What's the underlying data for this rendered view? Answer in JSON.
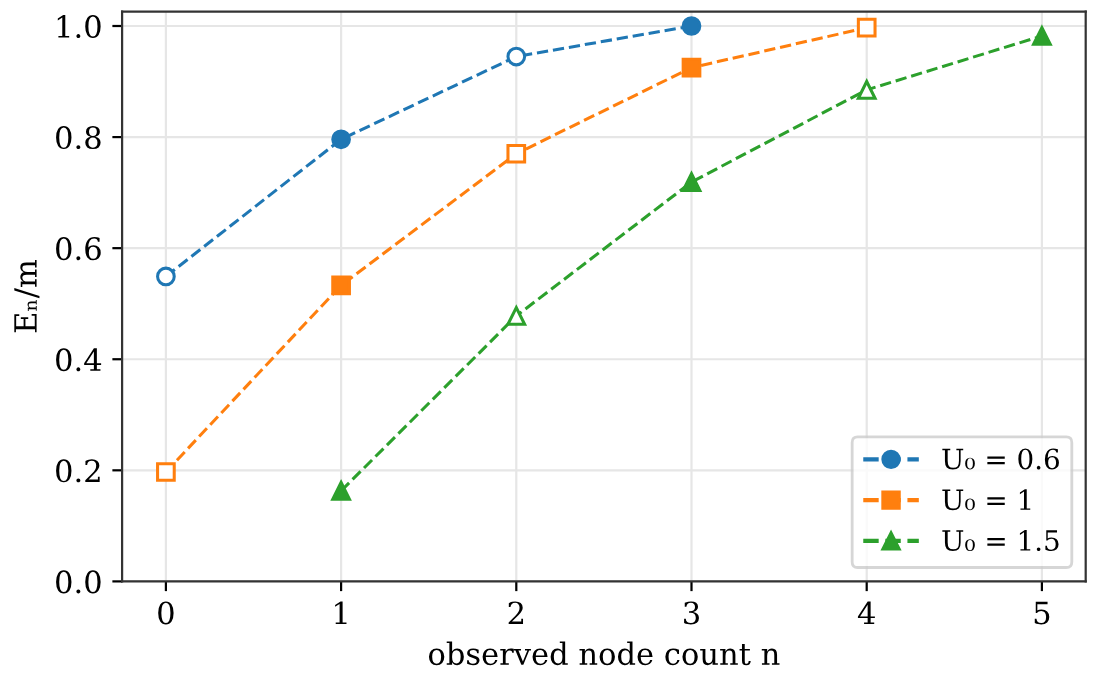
{
  "chart_data": {
    "type": "line",
    "xlabel": "observed node count n",
    "ylabel": "Eₙ/m",
    "x": [
      0,
      1,
      2,
      3,
      4,
      5
    ],
    "series": [
      {
        "name": "U₀ = 0.6",
        "color": "#1f77b4",
        "marker": "circle",
        "values": [
          0.549,
          0.796,
          0.945,
          1.0,
          null,
          null
        ],
        "colors": [
          "#ffffff",
          "#1f77b4",
          "#ffffff",
          "#1f77b4",
          null,
          null
        ]
      },
      {
        "name": "U₀ = 1",
        "color": "#ff7f0e",
        "marker": "square",
        "values": [
          0.197,
          0.533,
          0.77,
          0.925,
          0.997,
          null
        ],
        "colors": [
          "#ffffff",
          "#ff7f0e",
          "#ffffff",
          "#ff7f0e",
          "#ffffff",
          null
        ]
      },
      {
        "name": "U₀ = 1.5",
        "color": "#2ca02c",
        "marker": "triangle",
        "values": [
          null,
          0.163,
          0.478,
          0.719,
          0.885,
          0.982
        ],
        "colors": [
          null,
          "#2ca02c",
          "#ffffff",
          "#2ca02c",
          "#ffffff",
          "#2ca02c"
        ]
      }
    ],
    "xlim": [
      -0.25,
      5.25
    ],
    "xticks": [
      0,
      1,
      2,
      3,
      4,
      5
    ],
    "ylim": [
      0,
      1.026
    ],
    "yticks": [
      {
        "value": 0,
        "label": "0.0"
      },
      0.2,
      0.4,
      0.6,
      0.8,
      {
        "value": 1,
        "label": "1.0"
      }
    ],
    "grid": true,
    "legend": "lower right",
    "line_style": "dashed"
  }
}
